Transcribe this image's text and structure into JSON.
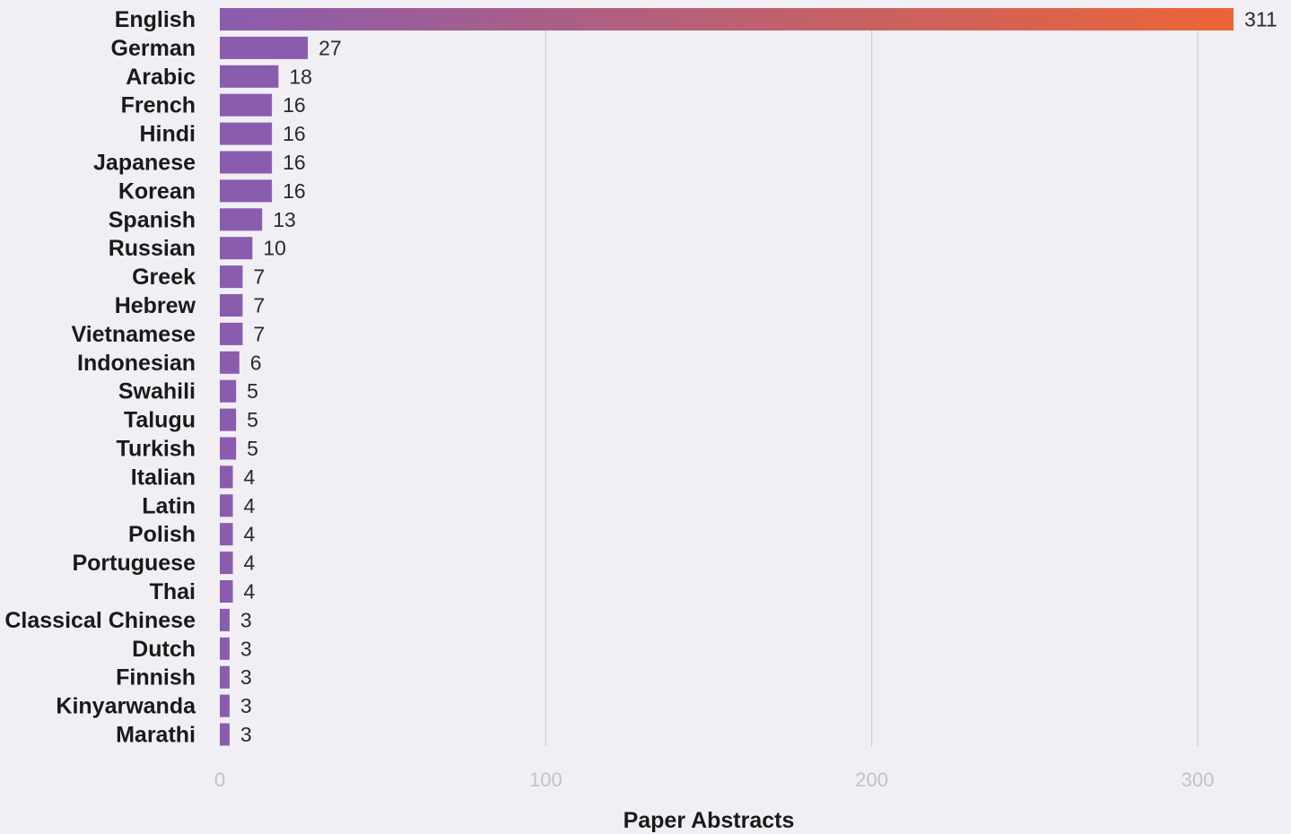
{
  "chart_data": {
    "type": "bar",
    "orientation": "horizontal",
    "categories": [
      "English",
      "German",
      "Arabic",
      "French",
      "Hindi",
      "Japanese",
      "Korean",
      "Spanish",
      "Russian",
      "Greek",
      "Hebrew",
      "Vietnamese",
      "Indonesian",
      "Swahili",
      "Talugu",
      "Turkish",
      "Italian",
      "Latin",
      "Polish",
      "Portuguese",
      "Thai",
      "Classical Chinese",
      "Dutch",
      "Finnish",
      "Kinyarwanda",
      "Marathi"
    ],
    "values": [
      311,
      27,
      18,
      16,
      16,
      16,
      16,
      13,
      10,
      7,
      7,
      7,
      6,
      5,
      5,
      5,
      4,
      4,
      4,
      4,
      4,
      3,
      3,
      3,
      3,
      3
    ],
    "title": "",
    "xlabel": "Paper Abstracts",
    "ylabel": "",
    "xlim": [
      0,
      320
    ],
    "xticks": [
      0,
      100,
      200,
      300
    ],
    "grid": "vertical",
    "colors": {
      "bar": "#8a5cae",
      "gradient_start": "#8a5cae",
      "gradient_end": "#ec6437",
      "background": "#f1eff4"
    }
  }
}
